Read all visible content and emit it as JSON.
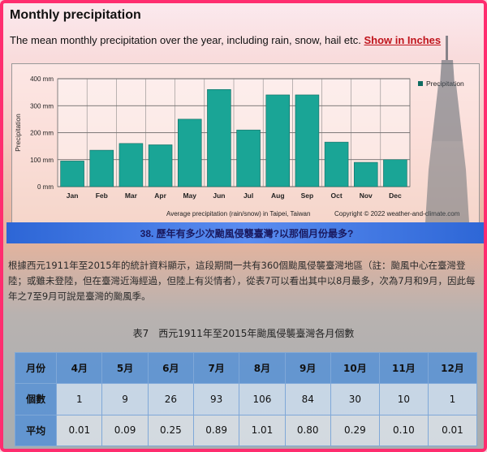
{
  "header": {
    "title": "Monthly precipitation",
    "description": "The mean monthly precipitation over the year, including rain, snow, hail etc.",
    "inches_link": "Show in Inches"
  },
  "chart_data": {
    "type": "bar",
    "categories": [
      "Jan",
      "Feb",
      "Mar",
      "Apr",
      "May",
      "Jun",
      "Jul",
      "Aug",
      "Sep",
      "Oct",
      "Nov",
      "Dec"
    ],
    "values": [
      95,
      135,
      160,
      155,
      250,
      360,
      210,
      340,
      340,
      165,
      90,
      100
    ],
    "ylim": [
      0,
      400
    ],
    "yticks": [
      "0 mm",
      "100 mm",
      "200 mm",
      "300 mm",
      "400 mm"
    ],
    "ylabel": "Precipitation",
    "legend": "Precipitation",
    "caption": "Average precipitation (rain/snow) in Taipei, Taiwan",
    "copyright": "Copyright © 2022  weather-and-climate.com",
    "bar_color": "#1aa596",
    "grid": true,
    "legend_position": "top-right"
  },
  "article": {
    "banner_title": "38. 歷年有多少次颱風侵襲臺灣?以那個月份最多?",
    "paragraph": "根據西元1911年至2015年的統計資料顯示，這段期間一共有360個颱風侵襲臺灣地區（註：颱風中心在臺灣登陸；或雖未登陸，但在臺灣近海經過，但陸上有災情者），從表7可以看出其中以8月最多，次為7月和9月，因此每年之7至9月可說是臺灣的颱風季。",
    "table_caption": "表7　西元1911年至2015年颱風侵襲臺灣各月個數",
    "table": {
      "header_label": "月份",
      "months": [
        "4月",
        "5月",
        "6月",
        "7月",
        "8月",
        "9月",
        "10月",
        "11月",
        "12月"
      ],
      "count_label": "個數",
      "counts": [
        "1",
        "9",
        "26",
        "93",
        "106",
        "84",
        "30",
        "10",
        "1"
      ],
      "avg_label": "平均",
      "averages": [
        "0.01",
        "0.09",
        "0.25",
        "0.89",
        "1.01",
        "0.80",
        "0.29",
        "0.10",
        "0.01"
      ]
    }
  }
}
